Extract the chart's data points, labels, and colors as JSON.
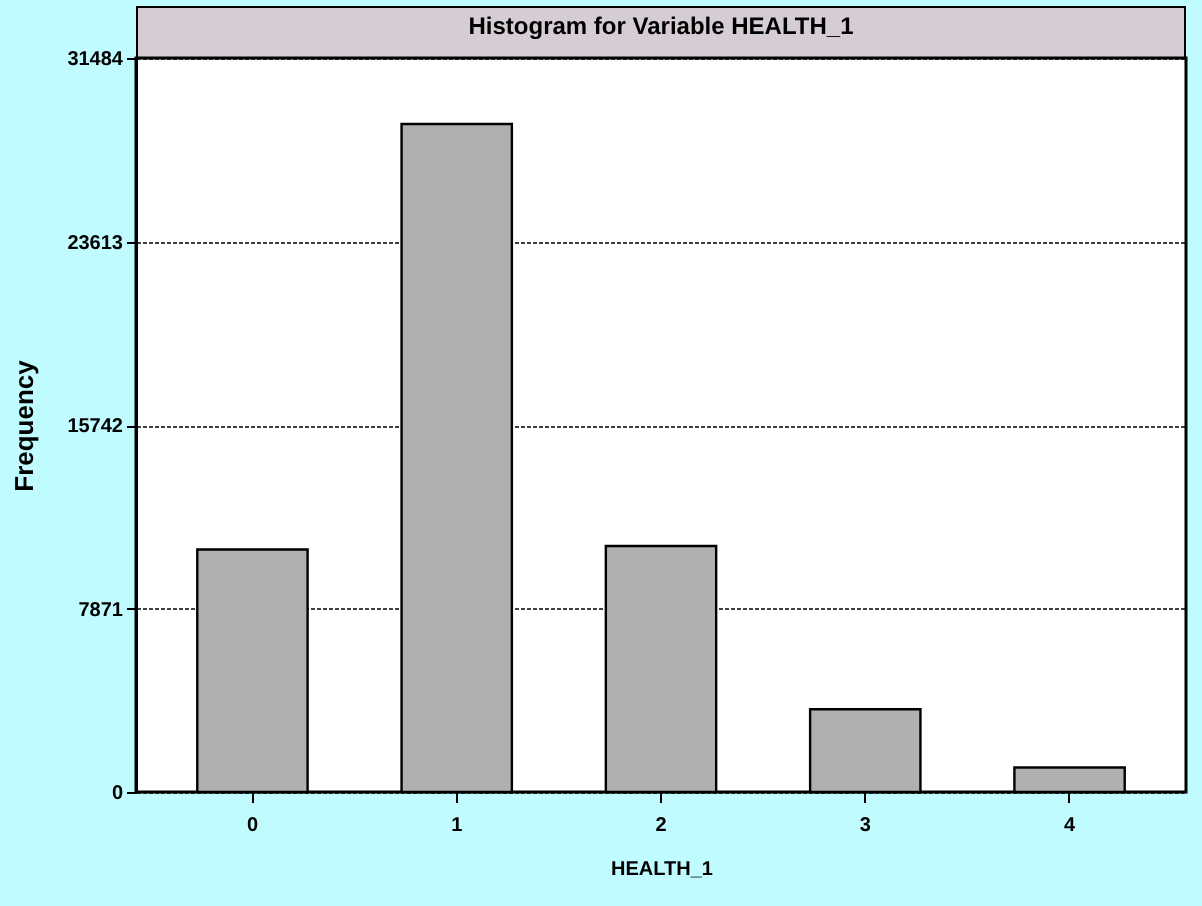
{
  "chart_data": {
    "type": "bar",
    "title": "Histogram for Variable HEALTH_1",
    "xlabel": "HEALTH_1",
    "ylabel": "Frequency",
    "categories": [
      "0",
      "1",
      "2",
      "3",
      "4"
    ],
    "values": [
      10400,
      28650,
      10550,
      3550,
      1050
    ],
    "color": "#b0b0b0",
    "ylim": [
      0,
      31484
    ],
    "yticks": [
      0,
      7871,
      15742,
      23613,
      31484
    ],
    "grid": "y"
  }
}
